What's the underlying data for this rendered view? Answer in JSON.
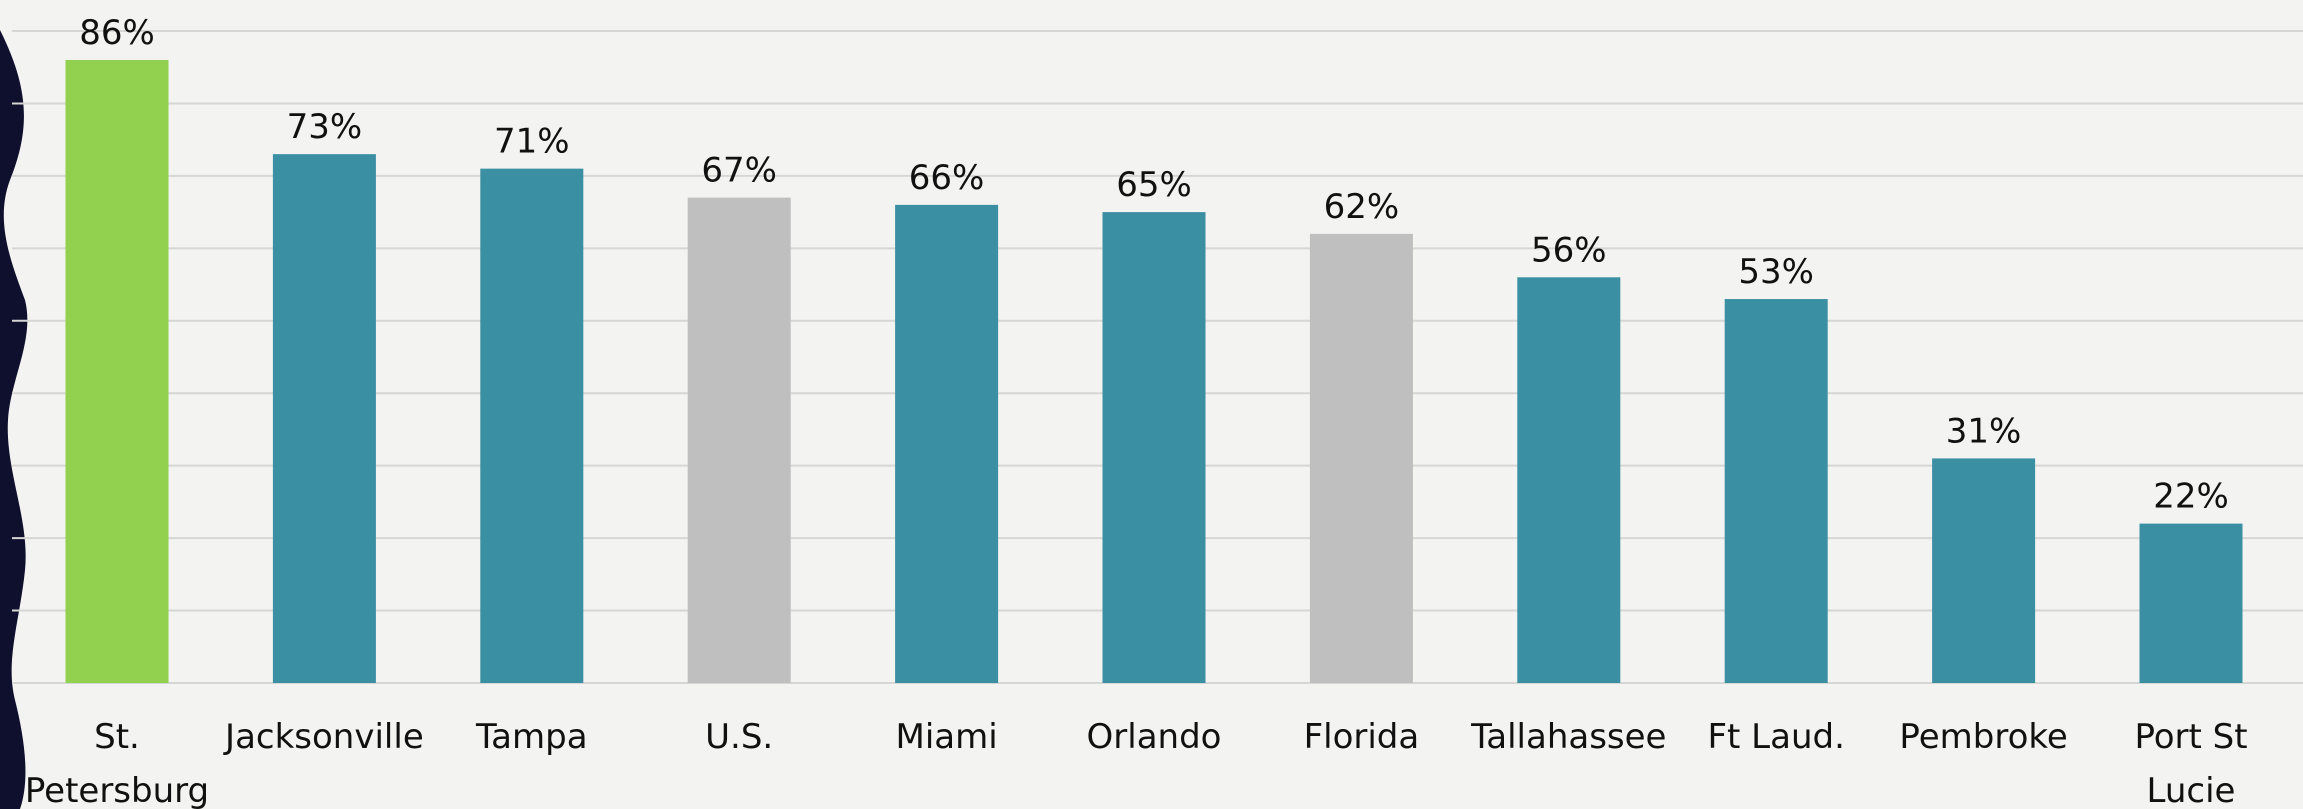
{
  "chart_data": {
    "type": "bar",
    "categories": [
      "St. Petersburg",
      "Jacksonville",
      "Tampa",
      "U.S.",
      "Miami",
      "Orlando",
      "Florida",
      "Tallahassee",
      "Ft Laud.",
      "Pembroke",
      "Port St Lucie"
    ],
    "values": [
      86,
      73,
      71,
      67,
      66,
      65,
      62,
      56,
      53,
      31,
      22
    ],
    "value_labels": [
      "86%",
      "73%",
      "71%",
      "67%",
      "66%",
      "65%",
      "62%",
      "56%",
      "53%",
      "31%",
      "22%"
    ],
    "colors": [
      "#92d050",
      "#3a8fa3",
      "#3a8fa3",
      "#bfbfbf",
      "#3a8fa3",
      "#3a8fa3",
      "#bfbfbf",
      "#3a8fa3",
      "#3a8fa3",
      "#3a8fa3",
      "#3a8fa3"
    ],
    "ylim": [
      0,
      90
    ],
    "yticks": [
      0,
      10,
      20,
      30,
      40,
      50,
      60,
      70,
      80,
      90
    ],
    "grid": true,
    "tick_labels": false
  }
}
